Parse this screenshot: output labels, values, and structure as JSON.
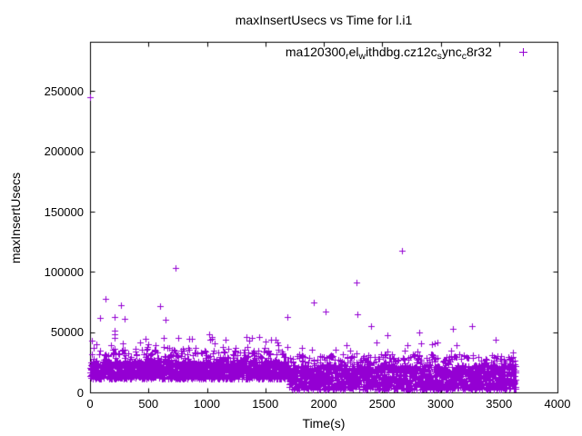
{
  "page": {
    "background": "#ffffff",
    "text_color": "#000000",
    "border_color": "#000000"
  },
  "chart_data": {
    "type": "scatter",
    "title": "maxInsertUsecs vs Time for l.i1",
    "xlabel": "Time(s)",
    "ylabel": "maxInsertUsecs",
    "xlim": [
      0,
      4000
    ],
    "ylim": [
      0,
      291000
    ],
    "xticks": [
      0,
      500,
      1000,
      1500,
      2000,
      2500,
      3000,
      3500,
      4000
    ],
    "yticks": [
      0,
      50000,
      100000,
      150000,
      200000,
      250000
    ],
    "grid": false,
    "legend_position": "top-right-inside",
    "series": [
      {
        "name": "ma120300_rel_withdbg.cz12c_sync_c8r32",
        "name_segments": [
          {
            "text": "ma120300",
            "sub": false
          },
          {
            "text": "r",
            "sub": true
          },
          {
            "text": "el",
            "sub": false
          },
          {
            "text": "w",
            "sub": true
          },
          {
            "text": "ithdbg.cz12c",
            "sub": false
          },
          {
            "text": "s",
            "sub": true
          },
          {
            "text": "ync",
            "sub": false
          },
          {
            "text": "c",
            "sub": true
          },
          {
            "text": "8r32",
            "sub": false
          }
        ],
        "marker": "plus",
        "color": "#9400d3",
        "description": "max insert latency in microseconds sampled roughly once per second from t=0 to t=3645s; dense band 11000-26000 us before t=1700, dense band 2200-22500 us after t=1700, with sparse spikes",
        "synthesis": {
          "seed": 1337,
          "step_seconds": 1,
          "segments": [
            {
              "t_start": 1,
              "t_end": 1699,
              "base_min": 11000,
              "base_max": 26000,
              "tails": [
                {
                  "prob": 0.12,
                  "min": 26000,
                  "max": 36000
                },
                {
                  "prob": 0.02,
                  "min": 36000,
                  "max": 46000
                }
              ]
            },
            {
              "t_start": 1700,
              "t_end": 3645,
              "base_min": 2200,
              "base_max": 22500,
              "tails": [
                {
                  "prob": 0.1,
                  "min": 22500,
                  "max": 32000
                },
                {
                  "prob": 0.015,
                  "min": 32000,
                  "max": 44000
                }
              ]
            }
          ]
        },
        "outliers": [
          [
            2,
            245000
          ],
          [
            84,
            62000
          ],
          [
            88,
            61500
          ],
          [
            135,
            77500
          ],
          [
            210,
            62700
          ],
          [
            211,
            51300
          ],
          [
            213,
            48300
          ],
          [
            268,
            72000
          ],
          [
            296,
            61200
          ],
          [
            599,
            71700
          ],
          [
            646,
            60400
          ],
          [
            731,
            103500
          ],
          [
            1019,
            48300
          ],
          [
            1688,
            62700
          ],
          [
            1914,
            74800
          ],
          [
            2015,
            67200
          ],
          [
            2280,
            91400
          ],
          [
            2285,
            65000
          ],
          [
            2404,
            55100
          ],
          [
            2544,
            47600
          ],
          [
            2669,
            117800
          ],
          [
            2816,
            49800
          ],
          [
            2949,
            40800
          ],
          [
            3102,
            52900
          ],
          [
            3106,
            52600
          ],
          [
            3268,
            55100
          ]
        ]
      }
    ]
  }
}
